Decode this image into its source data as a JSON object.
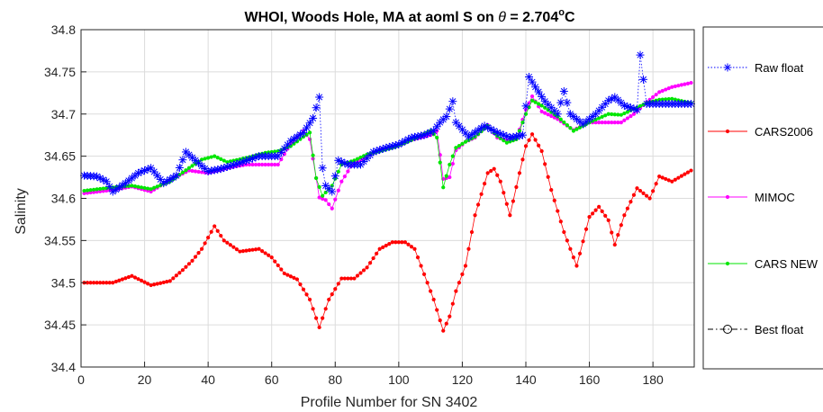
{
  "chart_data": {
    "type": "line",
    "title": {
      "main": "WHOI, Woods Hole, MA at aoml S on ",
      "symbol": "θ",
      "suffix": " = 2.704",
      "degree": "o",
      "unit": "C"
    },
    "xlabel": "Profile Number for SN 3402",
    "ylabel": "Salinity",
    "xlim": [
      0,
      193
    ],
    "ylim": [
      34.4,
      34.8
    ],
    "xticks": [
      0,
      20,
      40,
      60,
      80,
      100,
      120,
      140,
      160,
      180
    ],
    "yticks": [
      34.4,
      34.45,
      34.5,
      34.55,
      34.6,
      34.65,
      34.7,
      34.75,
      34.8
    ],
    "grid": true,
    "legend_position": "outside-right",
    "series": [
      {
        "name": "Raw float",
        "color": "#0000ff",
        "marker": "star",
        "line": "dotted",
        "knots": [
          [
            1,
            34.627
          ],
          [
            5,
            34.626
          ],
          [
            8,
            34.62
          ],
          [
            10,
            34.608
          ],
          [
            14,
            34.618
          ],
          [
            18,
            34.63
          ],
          [
            22,
            34.636
          ],
          [
            26,
            34.618
          ],
          [
            30,
            34.627
          ],
          [
            33,
            34.655
          ],
          [
            36,
            34.645
          ],
          [
            40,
            34.632
          ],
          [
            44,
            34.635
          ],
          [
            50,
            34.642
          ],
          [
            56,
            34.65
          ],
          [
            62,
            34.65
          ],
          [
            66,
            34.668
          ],
          [
            70,
            34.678
          ],
          [
            73,
            34.695
          ],
          [
            75,
            34.72
          ],
          [
            76,
            34.636
          ],
          [
            77,
            34.615
          ],
          [
            79,
            34.608
          ],
          [
            81,
            34.645
          ],
          [
            84,
            34.64
          ],
          [
            88,
            34.64
          ],
          [
            92,
            34.655
          ],
          [
            96,
            34.66
          ],
          [
            100,
            34.664
          ],
          [
            104,
            34.672
          ],
          [
            108,
            34.675
          ],
          [
            111,
            34.68
          ],
          [
            113,
            34.69
          ],
          [
            115,
            34.697
          ],
          [
            117,
            34.715
          ],
          [
            118,
            34.69
          ],
          [
            122,
            34.673
          ],
          [
            127,
            34.686
          ],
          [
            131,
            34.678
          ],
          [
            135,
            34.672
          ],
          [
            139,
            34.675
          ],
          [
            141,
            34.744
          ],
          [
            143,
            34.732
          ],
          [
            146,
            34.715
          ],
          [
            150,
            34.7
          ],
          [
            152,
            34.727
          ],
          [
            154,
            34.7
          ],
          [
            158,
            34.688
          ],
          [
            162,
            34.7
          ],
          [
            166,
            34.716
          ],
          [
            168,
            34.72
          ],
          [
            171,
            34.71
          ],
          [
            175,
            34.705
          ],
          [
            176,
            34.77
          ],
          [
            178,
            34.712
          ],
          [
            182,
            34.712
          ],
          [
            186,
            34.712
          ],
          [
            190,
            34.712
          ],
          [
            192,
            34.712
          ]
        ]
      },
      {
        "name": "CARS2006",
        "color": "#ff0000",
        "marker": "dot",
        "line": "solid",
        "knots": [
          [
            1,
            34.5
          ],
          [
            10,
            34.5
          ],
          [
            16,
            34.508
          ],
          [
            22,
            34.497
          ],
          [
            28,
            34.502
          ],
          [
            32,
            34.515
          ],
          [
            35,
            34.526
          ],
          [
            38,
            34.54
          ],
          [
            42,
            34.567
          ],
          [
            45,
            34.55
          ],
          [
            50,
            34.537
          ],
          [
            56,
            34.54
          ],
          [
            60,
            34.53
          ],
          [
            64,
            34.511
          ],
          [
            68,
            34.504
          ],
          [
            72,
            34.48
          ],
          [
            75,
            34.447
          ],
          [
            78,
            34.48
          ],
          [
            82,
            34.505
          ],
          [
            86,
            34.505
          ],
          [
            90,
            34.518
          ],
          [
            94,
            34.54
          ],
          [
            98,
            34.548
          ],
          [
            102,
            34.548
          ],
          [
            105,
            34.54
          ],
          [
            108,
            34.51
          ],
          [
            111,
            34.48
          ],
          [
            114,
            34.443
          ],
          [
            116,
            34.46
          ],
          [
            118,
            34.49
          ],
          [
            121,
            34.52
          ],
          [
            124,
            34.58
          ],
          [
            128,
            34.63
          ],
          [
            130,
            34.635
          ],
          [
            132,
            34.62
          ],
          [
            135,
            34.58
          ],
          [
            138,
            34.63
          ],
          [
            140,
            34.662
          ],
          [
            142,
            34.676
          ],
          [
            145,
            34.656
          ],
          [
            148,
            34.61
          ],
          [
            152,
            34.56
          ],
          [
            156,
            34.52
          ],
          [
            160,
            34.578
          ],
          [
            163,
            34.59
          ],
          [
            166,
            34.574
          ],
          [
            168,
            34.545
          ],
          [
            171,
            34.58
          ],
          [
            175,
            34.612
          ],
          [
            179,
            34.6
          ],
          [
            182,
            34.626
          ],
          [
            186,
            34.62
          ],
          [
            192,
            34.633
          ]
        ]
      },
      {
        "name": "MIMOC",
        "color": "#ff00ff",
        "marker": "dot",
        "line": "solid",
        "knots": [
          [
            1,
            34.606
          ],
          [
            10,
            34.61
          ],
          [
            16,
            34.614
          ],
          [
            22,
            34.608
          ],
          [
            28,
            34.622
          ],
          [
            34,
            34.633
          ],
          [
            40,
            34.63
          ],
          [
            46,
            34.636
          ],
          [
            52,
            34.64
          ],
          [
            58,
            34.64
          ],
          [
            62,
            34.64
          ],
          [
            66,
            34.665
          ],
          [
            70,
            34.68
          ],
          [
            72,
            34.67
          ],
          [
            75,
            34.601
          ],
          [
            77,
            34.598
          ],
          [
            79,
            34.588
          ],
          [
            82,
            34.62
          ],
          [
            85,
            34.638
          ],
          [
            90,
            34.65
          ],
          [
            94,
            34.658
          ],
          [
            98,
            34.66
          ],
          [
            104,
            34.669
          ],
          [
            110,
            34.675
          ],
          [
            112,
            34.68
          ],
          [
            114,
            34.623
          ],
          [
            116,
            34.625
          ],
          [
            118,
            34.657
          ],
          [
            121,
            34.667
          ],
          [
            124,
            34.672
          ],
          [
            128,
            34.687
          ],
          [
            131,
            34.672
          ],
          [
            134,
            34.669
          ],
          [
            137,
            34.67
          ],
          [
            140,
            34.705
          ],
          [
            142,
            34.721
          ],
          [
            145,
            34.703
          ],
          [
            150,
            34.694
          ],
          [
            155,
            34.681
          ],
          [
            160,
            34.69
          ],
          [
            166,
            34.69
          ],
          [
            170,
            34.69
          ],
          [
            174,
            34.7
          ],
          [
            178,
            34.714
          ],
          [
            182,
            34.726
          ],
          [
            186,
            34.732
          ],
          [
            192,
            34.737
          ]
        ]
      },
      {
        "name": "CARS NEW",
        "color": "#00e600",
        "marker": "dot",
        "line": "solid",
        "knots": [
          [
            1,
            34.609
          ],
          [
            10,
            34.613
          ],
          [
            16,
            34.615
          ],
          [
            22,
            34.611
          ],
          [
            28,
            34.62
          ],
          [
            34,
            34.636
          ],
          [
            38,
            34.646
          ],
          [
            42,
            34.65
          ],
          [
            46,
            34.643
          ],
          [
            52,
            34.648
          ],
          [
            58,
            34.654
          ],
          [
            62,
            34.656
          ],
          [
            66,
            34.662
          ],
          [
            70,
            34.673
          ],
          [
            72,
            34.678
          ],
          [
            74,
            34.624
          ],
          [
            76,
            34.603
          ],
          [
            79,
            34.615
          ],
          [
            82,
            34.64
          ],
          [
            86,
            34.645
          ],
          [
            90,
            34.652
          ],
          [
            94,
            34.656
          ],
          [
            98,
            34.66
          ],
          [
            104,
            34.669
          ],
          [
            110,
            34.68
          ],
          [
            112,
            34.672
          ],
          [
            114,
            34.613
          ],
          [
            116,
            34.64
          ],
          [
            118,
            34.66
          ],
          [
            121,
            34.667
          ],
          [
            124,
            34.673
          ],
          [
            128,
            34.686
          ],
          [
            131,
            34.674
          ],
          [
            134,
            34.666
          ],
          [
            137,
            34.67
          ],
          [
            140,
            34.7
          ],
          [
            142,
            34.716
          ],
          [
            145,
            34.71
          ],
          [
            150,
            34.697
          ],
          [
            155,
            34.68
          ],
          [
            160,
            34.69
          ],
          [
            166,
            34.7
          ],
          [
            170,
            34.699
          ],
          [
            174,
            34.706
          ],
          [
            178,
            34.713
          ],
          [
            182,
            34.717
          ],
          [
            186,
            34.718
          ],
          [
            192,
            34.713
          ]
        ]
      },
      {
        "name": "Best float",
        "color": "#000000",
        "marker": "circle",
        "line": "dashdot",
        "knots": []
      }
    ]
  }
}
